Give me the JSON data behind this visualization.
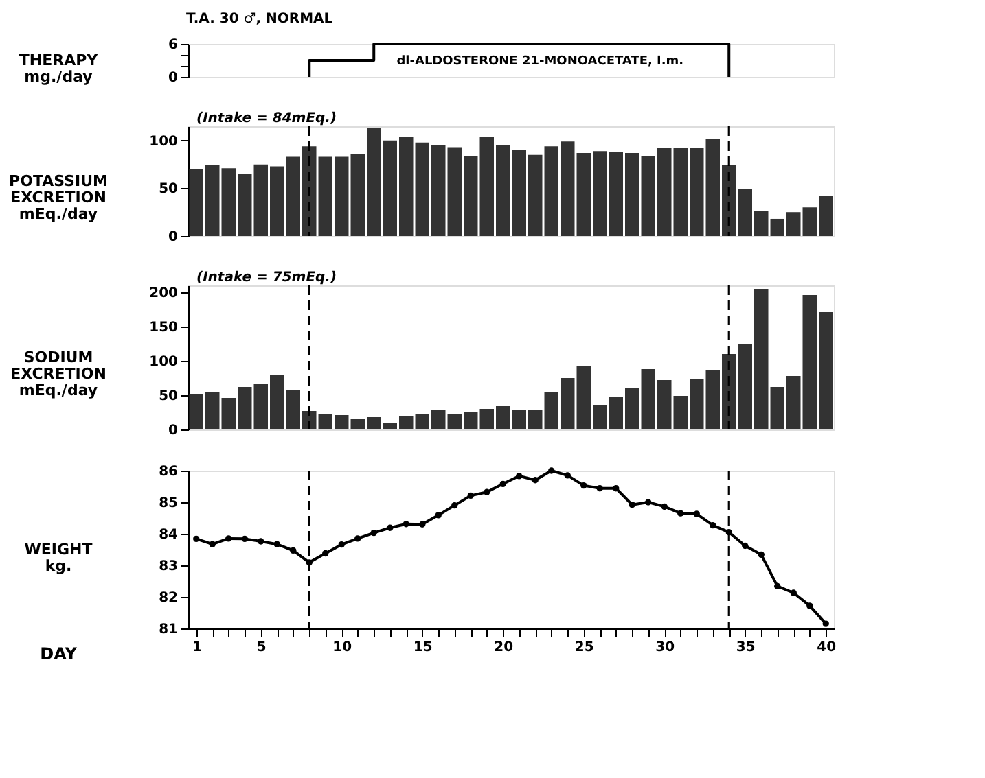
{
  "chart_data": [
    {
      "type": "step",
      "title": "T.A. 30 ♂, NORMAL",
      "ylabel": "THERAPY\nmg./day",
      "x": [
        8,
        8,
        12,
        12,
        34,
        34
      ],
      "values": [
        0,
        3,
        3,
        6,
        6,
        0
      ],
      "color": "#000000",
      "xlim": [
        0.5,
        40.5
      ],
      "ylim": [
        0,
        6
      ],
      "yticks": [
        0,
        {
          "value": 2,
          "label": null
        },
        {
          "value": 4,
          "label": null
        },
        6
      ],
      "tick_labels": "y",
      "grid": false,
      "annotations": [
        "dl-ALDOSTERONE 21-MONOACETATE, I.m."
      ]
    },
    {
      "type": "bar",
      "ylabel": "POTASSIUM\nEXCRETION\nmEq./day",
      "x": [
        1,
        2,
        3,
        4,
        5,
        6,
        7,
        8,
        9,
        10,
        11,
        12,
        13,
        14,
        15,
        16,
        17,
        18,
        19,
        20,
        21,
        22,
        23,
        24,
        25,
        26,
        27,
        28,
        29,
        30,
        31,
        32,
        33,
        34,
        35,
        36,
        37,
        38,
        39,
        40
      ],
      "values": [
        70,
        74,
        71,
        65,
        75,
        73,
        83,
        94,
        83,
        83,
        86,
        113,
        100,
        104,
        98,
        95,
        93,
        84,
        104,
        95,
        90,
        85,
        94,
        99,
        87,
        89,
        88,
        87,
        84,
        92,
        92,
        92,
        102,
        74,
        49,
        26,
        18,
        25,
        30,
        42
      ],
      "color": "#333333",
      "xlim": [
        0.5,
        40.5
      ],
      "ylim": [
        0,
        115
      ],
      "yticks": [
        0,
        50,
        100
      ],
      "tick_labels": "y",
      "grid": false,
      "ref_lines": [
        {
          "axis": "x",
          "value": 8,
          "line_style": "dashed"
        },
        {
          "axis": "x",
          "value": 34,
          "line_style": "dashed"
        }
      ],
      "annotations": [
        "(Intake = 84mEq.)"
      ]
    },
    {
      "type": "bar",
      "ylabel": "SODIUM\nEXCRETION\nmEq./day",
      "x": [
        1,
        2,
        3,
        4,
        5,
        6,
        7,
        8,
        9,
        10,
        11,
        12,
        13,
        14,
        15,
        16,
        17,
        18,
        19,
        20,
        21,
        22,
        23,
        24,
        25,
        26,
        27,
        28,
        29,
        30,
        31,
        32,
        33,
        34,
        35,
        36,
        37,
        38,
        39,
        40
      ],
      "values": [
        52,
        54,
        46,
        62,
        66,
        79,
        57,
        27,
        23,
        21,
        15,
        18,
        10,
        20,
        23,
        29,
        22,
        25,
        30,
        34,
        29,
        29,
        54,
        75,
        92,
        36,
        48,
        60,
        88,
        72,
        49,
        74,
        86,
        110,
        125,
        205,
        62,
        78,
        196,
        171
      ],
      "color": "#333333",
      "xlim": [
        0.5,
        40.5
      ],
      "ylim": [
        0,
        210
      ],
      "yticks": [
        0,
        50,
        100,
        150,
        200
      ],
      "tick_labels": "y",
      "grid": false,
      "ref_lines": [
        {
          "axis": "x",
          "value": 8,
          "line_style": "dashed"
        },
        {
          "axis": "x",
          "value": 34,
          "line_style": "dashed"
        }
      ],
      "annotations": [
        "(Intake = 75mEq.)"
      ]
    },
    {
      "type": "line",
      "ylabel": "WEIGHT\nkg.",
      "xlabel": "DAY",
      "x": [
        1,
        2,
        3,
        4,
        5,
        6,
        7,
        8,
        9,
        10,
        11,
        12,
        13,
        14,
        15,
        16,
        17,
        18,
        19,
        20,
        21,
        22,
        23,
        24,
        25,
        26,
        27,
        28,
        29,
        30,
        31,
        32,
        33,
        34,
        35,
        36,
        37,
        38,
        39,
        40
      ],
      "values": [
        83.84,
        83.67,
        83.85,
        83.84,
        83.76,
        83.67,
        83.47,
        83.09,
        83.38,
        83.66,
        83.85,
        84.03,
        84.19,
        84.31,
        84.3,
        84.59,
        84.9,
        85.21,
        85.32,
        85.58,
        85.83,
        85.7,
        86.0,
        85.85,
        85.53,
        85.44,
        85.44,
        84.92,
        85.0,
        84.86,
        84.65,
        84.63,
        84.27,
        84.05,
        83.62,
        83.34,
        82.34,
        82.13,
        81.72,
        81.15
      ],
      "color": "#000000",
      "marker": "circle",
      "line_style": "solid",
      "xlim": [
        0.5,
        40.5
      ],
      "ylim": [
        81,
        86
      ],
      "yticks": [
        81,
        82,
        83,
        84,
        85,
        86
      ],
      "xticks": [
        1,
        {
          "value": 2,
          "label": null
        },
        {
          "value": 3,
          "label": null
        },
        {
          "value": 4,
          "label": null
        },
        5,
        {
          "value": 6,
          "label": null
        },
        {
          "value": 7,
          "label": null
        },
        {
          "value": 8,
          "label": null
        },
        {
          "value": 9,
          "label": null
        },
        10,
        {
          "value": 11,
          "label": null
        },
        {
          "value": 12,
          "label": null
        },
        {
          "value": 13,
          "label": null
        },
        {
          "value": 14,
          "label": null
        },
        15,
        {
          "value": 16,
          "label": null
        },
        {
          "value": 17,
          "label": null
        },
        {
          "value": 18,
          "label": null
        },
        {
          "value": 19,
          "label": null
        },
        20,
        {
          "value": 21,
          "label": null
        },
        {
          "value": 22,
          "label": null
        },
        {
          "value": 23,
          "label": null
        },
        {
          "value": 24,
          "label": null
        },
        25,
        {
          "value": 26,
          "label": null
        },
        {
          "value": 27,
          "label": null
        },
        {
          "value": 28,
          "label": null
        },
        {
          "value": 29,
          "label": null
        },
        30,
        {
          "value": 31,
          "label": null
        },
        {
          "value": 32,
          "label": null
        },
        {
          "value": 33,
          "label": null
        },
        {
          "value": 34,
          "label": null
        },
        35,
        {
          "value": 36,
          "label": null
        },
        {
          "value": 37,
          "label": null
        },
        {
          "value": 38,
          "label": null
        },
        {
          "value": 39,
          "label": null
        },
        40
      ],
      "grid": false,
      "ref_lines": [
        {
          "axis": "x",
          "value": 8,
          "line_style": "dashed"
        },
        {
          "axis": "x",
          "value": 34,
          "line_style": "dashed"
        }
      ]
    }
  ]
}
